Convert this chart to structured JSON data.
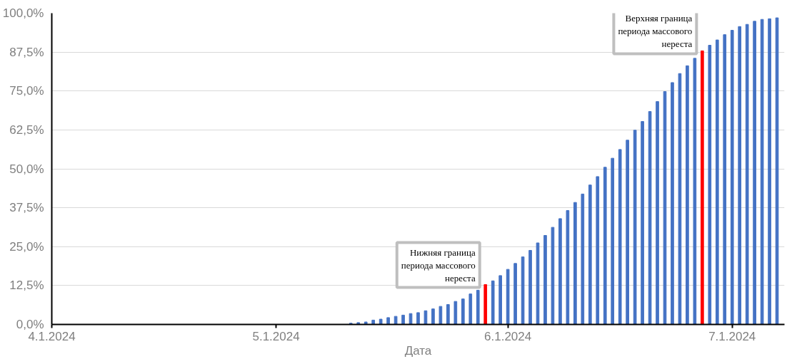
{
  "chart_data": {
    "type": "bar",
    "xlabel": "Дата",
    "x": [
      "2024-05-11",
      "2024-05-12",
      "2024-05-13",
      "2024-05-14",
      "2024-05-15",
      "2024-05-16",
      "2024-05-17",
      "2024-05-18",
      "2024-05-19",
      "2024-05-20",
      "2024-05-21",
      "2024-05-22",
      "2024-05-23",
      "2024-05-24",
      "2024-05-25",
      "2024-05-26",
      "2024-05-27",
      "2024-05-28",
      "2024-05-29",
      "2024-05-30",
      "2024-05-31",
      "2024-06-01",
      "2024-06-02",
      "2024-06-03",
      "2024-06-04",
      "2024-06-05",
      "2024-06-06",
      "2024-06-07",
      "2024-06-08",
      "2024-06-09",
      "2024-06-10",
      "2024-06-11",
      "2024-06-12",
      "2024-06-13",
      "2024-06-14",
      "2024-06-15",
      "2024-06-16",
      "2024-06-17",
      "2024-06-18",
      "2024-06-19",
      "2024-06-20",
      "2024-06-21",
      "2024-06-22",
      "2024-06-23",
      "2024-06-24",
      "2024-06-25",
      "2024-06-26",
      "2024-06-27",
      "2024-06-28",
      "2024-06-29",
      "2024-06-30",
      "2024-07-01",
      "2024-07-02",
      "2024-07-03",
      "2024-07-04",
      "2024-07-05",
      "2024-07-06",
      "2024-07-07"
    ],
    "values": [
      0.4,
      0.6,
      0.8,
      1.4,
      1.7,
      2.2,
      2.6,
      3.0,
      3.5,
      3.8,
      4.4,
      5.0,
      5.8,
      6.4,
      7.4,
      8.2,
      9.8,
      11.0,
      12.8,
      14.0,
      15.7,
      17.7,
      19.6,
      21.7,
      23.8,
      26.2,
      28.6,
      31.2,
      34.0,
      36.6,
      39.2,
      41.9,
      44.8,
      47.5,
      50.5,
      53.4,
      56.2,
      59.2,
      62.4,
      65.2,
      68.4,
      71.6,
      74.8,
      77.7,
      80.6,
      83.1,
      85.5,
      87.9,
      89.7,
      91.4,
      93.1,
      94.5,
      95.7,
      96.4,
      97.4,
      98.0,
      98.2,
      98.5
    ],
    "colors": [
      "#4472c4",
      "#4472c4",
      "#4472c4",
      "#4472c4",
      "#4472c4",
      "#4472c4",
      "#4472c4",
      "#4472c4",
      "#4472c4",
      "#4472c4",
      "#4472c4",
      "#4472c4",
      "#4472c4",
      "#4472c4",
      "#4472c4",
      "#4472c4",
      "#4472c4",
      "#4472c4",
      "#ff0000",
      "#4472c4",
      "#4472c4",
      "#4472c4",
      "#4472c4",
      "#4472c4",
      "#4472c4",
      "#4472c4",
      "#4472c4",
      "#4472c4",
      "#4472c4",
      "#4472c4",
      "#4472c4",
      "#4472c4",
      "#4472c4",
      "#4472c4",
      "#4472c4",
      "#4472c4",
      "#4472c4",
      "#4472c4",
      "#4472c4",
      "#4472c4",
      "#4472c4",
      "#4472c4",
      "#4472c4",
      "#4472c4",
      "#4472c4",
      "#4472c4",
      "#4472c4",
      "#ff0000",
      "#4472c4",
      "#4472c4",
      "#4472c4",
      "#4472c4",
      "#4472c4",
      "#4472c4",
      "#4472c4",
      "#4472c4",
      "#4472c4",
      "#4472c4"
    ],
    "xlim": [
      "2024-04-01",
      "2024-07-08"
    ],
    "xticks": [
      {
        "value": "2024-04-01",
        "label": "4.1.2024"
      },
      {
        "value": "2024-05-01",
        "label": "5.1.2024"
      },
      {
        "value": "2024-06-01",
        "label": "6.1.2024"
      },
      {
        "value": "2024-07-01",
        "label": "7.1.2024"
      }
    ],
    "ylim": [
      0,
      100
    ],
    "yticks": [
      {
        "value": 0,
        "label": "0,0%"
      },
      {
        "value": 12.5,
        "label": "12,5%"
      },
      {
        "value": 25,
        "label": "25,0%"
      },
      {
        "value": 37.5,
        "label": "37,5%"
      },
      {
        "value": 50,
        "label": "50,0%"
      },
      {
        "value": 62.5,
        "label": "62,5%"
      },
      {
        "value": 75,
        "label": "75,0%"
      },
      {
        "value": 87.5,
        "label": "87,5%"
      },
      {
        "value": 100,
        "label": "100,0%"
      }
    ],
    "grid": "y",
    "annotations": [
      {
        "text": "Нижняя граница\nпериода массового\nнереста",
        "x": "2024-05-29",
        "y": 12.8
      },
      {
        "text": "Верхняя граница\nпериода массового\nнереста",
        "x": "2024-06-27",
        "y": 87.9
      }
    ]
  }
}
